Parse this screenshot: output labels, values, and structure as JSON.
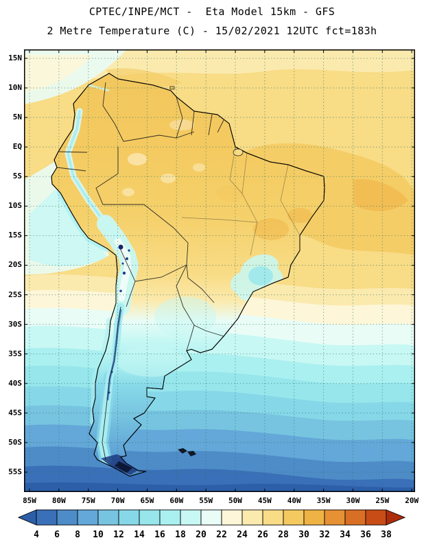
{
  "header": {
    "title_line1": "CPTEC/INPE/MCT -  Eta Model 15km - GFS",
    "title_line2": "2 Metre Temperature (C) - 15/02/2021 12UTC fct=183h"
  },
  "map": {
    "lat_labels": [
      "15N",
      "10N",
      "5N",
      "EQ",
      "5S",
      "10S",
      "15S",
      "20S",
      "25S",
      "30S",
      "35S",
      "40S",
      "45S",
      "50S",
      "55S"
    ],
    "lon_labels": [
      "85W",
      "80W",
      "75W",
      "70W",
      "65W",
      "60W",
      "55W",
      "50W",
      "45W",
      "40W",
      "35W",
      "30W",
      "25W",
      "20W"
    ]
  },
  "colorbar": {
    "tick_labels": [
      "4",
      "6",
      "8",
      "10",
      "12",
      "14",
      "16",
      "18",
      "20",
      "22",
      "24",
      "26",
      "28",
      "30",
      "32",
      "34",
      "36",
      "38"
    ],
    "colors": [
      "#2d5fa8",
      "#3a70b8",
      "#4e8cc8",
      "#63a8d8",
      "#77c4e0",
      "#86d8e8",
      "#96e6ec",
      "#abf0f0",
      "#c8f8f4",
      "#e9fcf6",
      "#fdf6d8",
      "#fbeaae",
      "#f8dc86",
      "#f4ca60",
      "#efb345",
      "#e69134",
      "#d96f24",
      "#c84c16",
      "#ad2c0c"
    ]
  }
}
